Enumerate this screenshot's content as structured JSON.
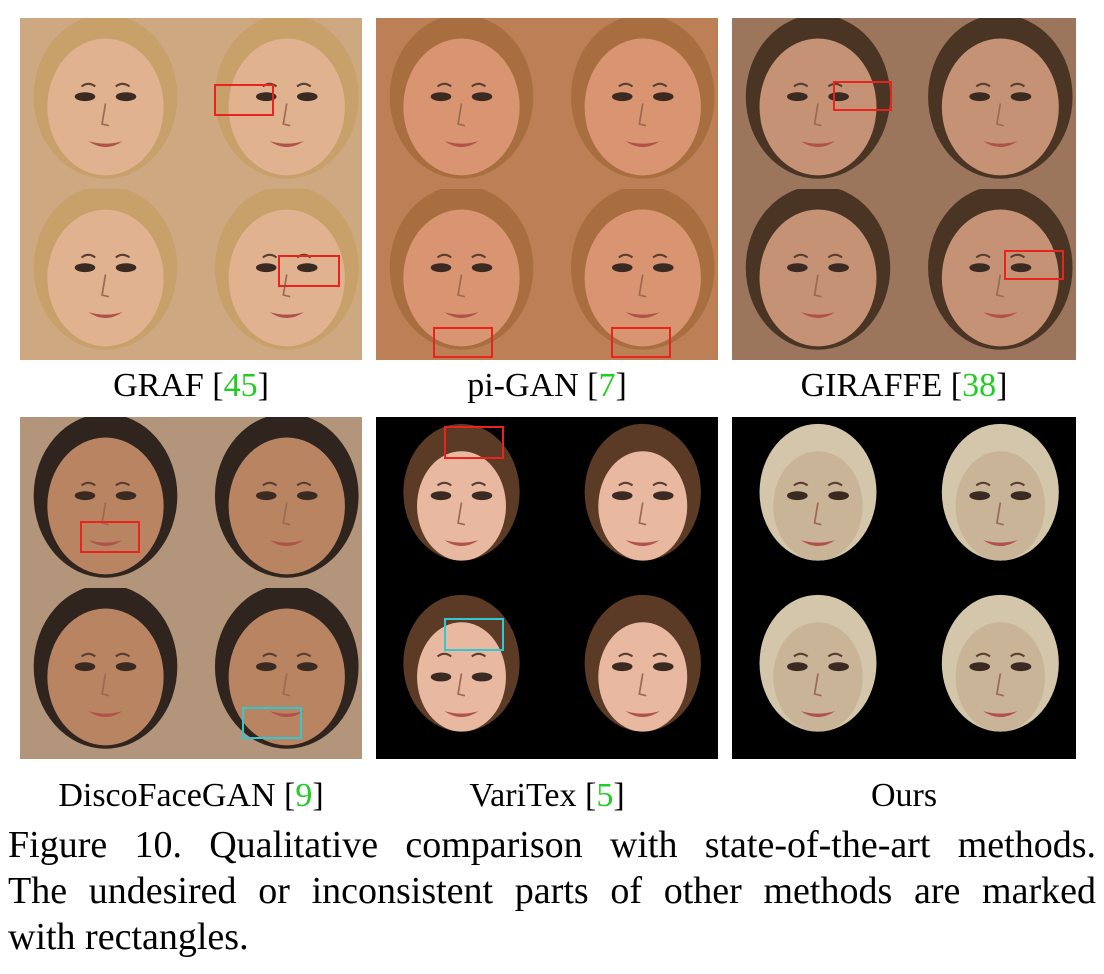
{
  "panels": [
    {
      "method": "GRAF",
      "ref": "45",
      "background": "#c9a57c",
      "skin": "#e0b28f",
      "hair": "#c7a06a",
      "marks": [
        {
          "color": "red"
        },
        {
          "color": "red"
        }
      ]
    },
    {
      "method": "pi-GAN",
      "ref": "7",
      "background": "#b57a4e",
      "skin": "#d99571",
      "hair": "#a86e3f",
      "marks": [
        {
          "color": "red"
        },
        {
          "color": "red"
        }
      ]
    },
    {
      "method": "GIRAFFE",
      "ref": "38",
      "background": "#8d6c55",
      "skin": "#c69276",
      "hair": "#4a3525",
      "marks": [
        {
          "color": "red"
        },
        {
          "color": "red"
        }
      ]
    },
    {
      "method": "DiscoFaceGAN",
      "ref": "9",
      "background": "#b19b82",
      "skin": "#b98462",
      "hair": "#2f241e",
      "marks": [
        {
          "color": "red"
        },
        {
          "color": "cyan"
        }
      ]
    },
    {
      "method": "VariTex",
      "ref": "5",
      "background": "#000000",
      "skin": "#e8b8a0",
      "hair": "#5b3a26",
      "marks": [
        {
          "color": "red"
        },
        {
          "color": "cyan"
        }
      ]
    },
    {
      "method": "Ours",
      "ref": "",
      "background": "#000000",
      "skin": "#c9b498",
      "hair": "#d3c6aa",
      "marks": []
    }
  ],
  "caption": {
    "line1": "Figure 10.  Qualitative comparison with state-of-the-art methods.",
    "line2": "The undesired or inconsistent parts of other methods are marked",
    "line3": "with rectangles."
  }
}
